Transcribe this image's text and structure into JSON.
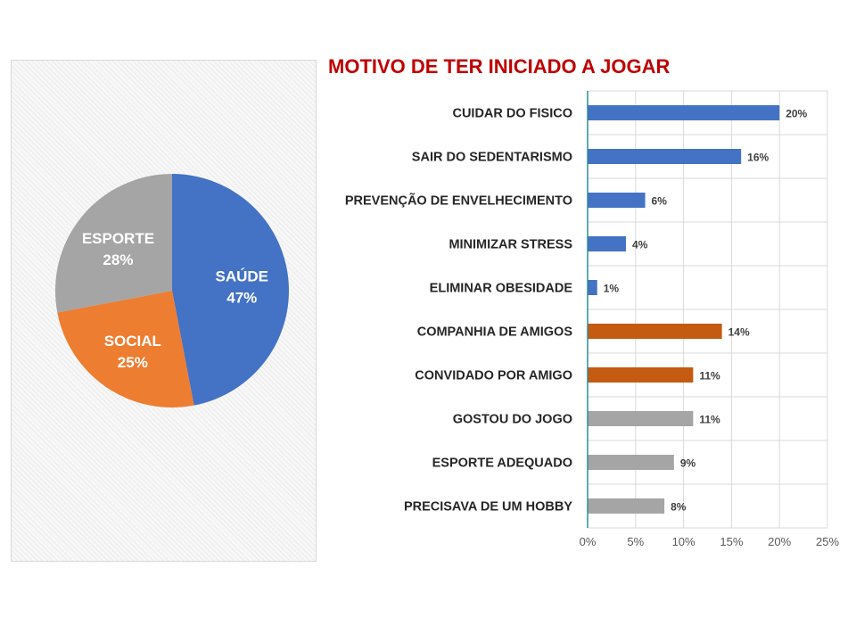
{
  "chart_data": [
    {
      "type": "pie",
      "slices": [
        {
          "label": "SAÚDE",
          "value": 47,
          "value_label": "47%",
          "color": "#4472c4"
        },
        {
          "label": "SOCIAL",
          "value": 25,
          "value_label": "25%",
          "color": "#ed7d31"
        },
        {
          "label": "ESPORTE",
          "value": 28,
          "value_label": "28%",
          "color": "#a5a5a5"
        }
      ]
    },
    {
      "type": "bar",
      "orientation": "horizontal",
      "title": "MOTIVO DE TER INICIADO A JOGAR",
      "title_color": "#c00000",
      "categories": [
        "CUIDAR DO FISICO",
        "SAIR DO SEDENTARISMO",
        "PREVENÇÃO DE ENVELHECIMENTO",
        "MINIMIZAR STRESS",
        "ELIMINAR OBESIDADE",
        "COMPANHIA DE AMIGOS",
        "CONVIDADO POR AMIGO",
        "GOSTOU DO JOGO",
        "ESPORTE ADEQUADO",
        "PRECISAVA DE UM  HOBBY"
      ],
      "values": [
        20,
        16,
        6,
        4,
        1,
        14,
        11,
        11,
        9,
        8
      ],
      "value_labels": [
        "20%",
        "16%",
        "6%",
        "4%",
        "1%",
        "14%",
        "11%",
        "11%",
        "9%",
        "8%"
      ],
      "colors": [
        "#4472c4",
        "#4472c4",
        "#4472c4",
        "#4472c4",
        "#4472c4",
        "#c55a11",
        "#c55a11",
        "#a5a5a5",
        "#a5a5a5",
        "#a5a5a5"
      ],
      "xlim": [
        0,
        25
      ],
      "xticks": [
        0,
        5,
        10,
        15,
        20,
        25
      ],
      "xtick_labels": [
        "0%",
        "5%",
        "10%",
        "15%",
        "20%",
        "25%"
      ],
      "grid": true
    }
  ]
}
